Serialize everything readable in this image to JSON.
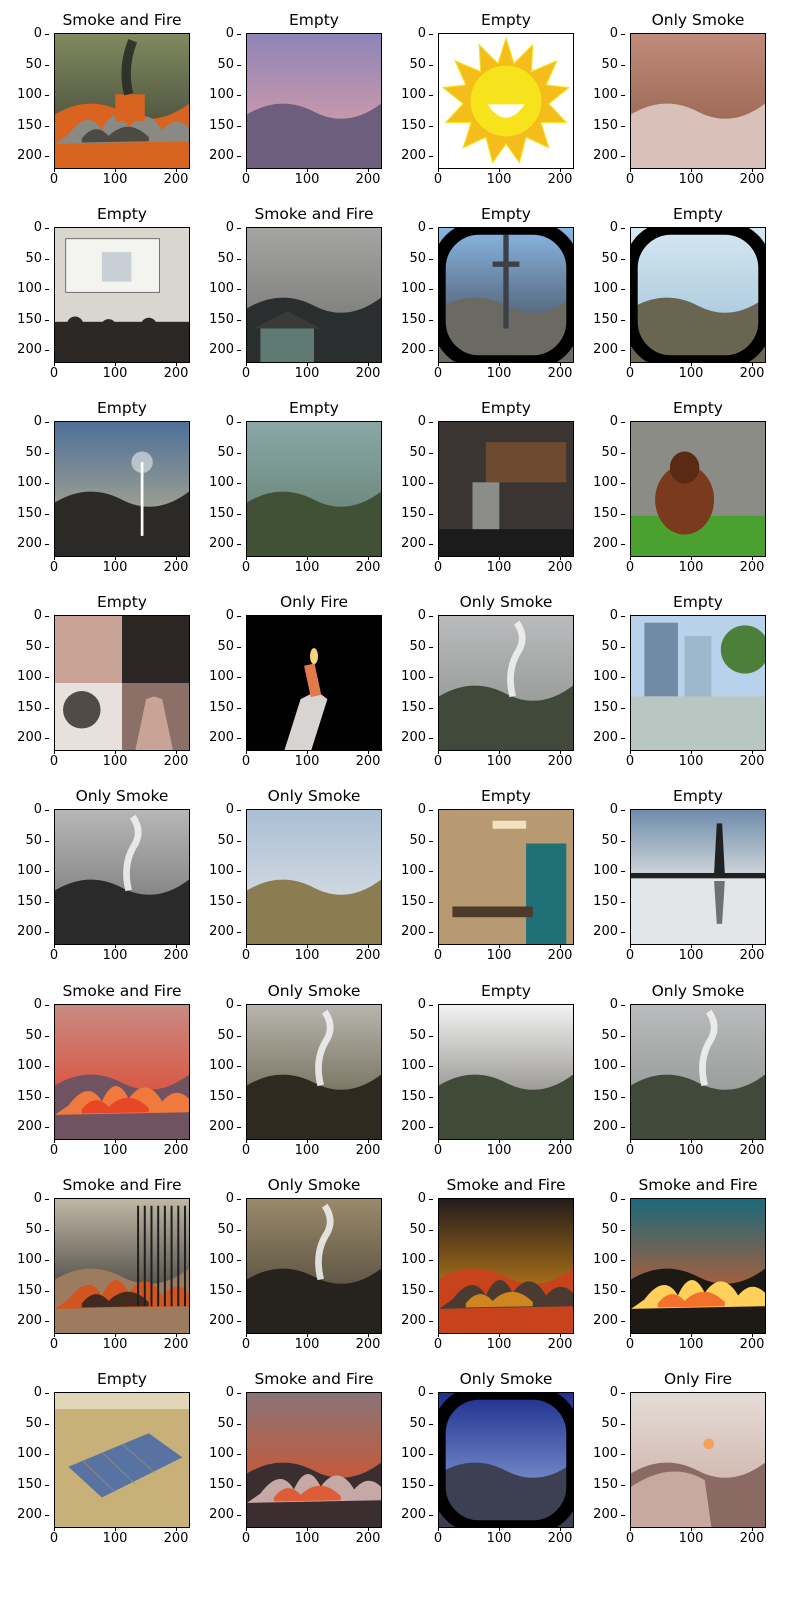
{
  "figure": {
    "x_ticks": [
      "0",
      "100",
      "200"
    ],
    "y_ticks": [
      "0",
      "50",
      "100",
      "150",
      "200"
    ],
    "panels": [
      {
        "title": "Smoke and Fire",
        "scene": "road-bus-fire",
        "colors": [
          "#7f8a5e",
          "#3b3b33",
          "#d8641f",
          "#8a8a84"
        ]
      },
      {
        "title": "Empty",
        "scene": "sunset-sky",
        "colors": [
          "#8e84b8",
          "#e8a3a4",
          "#6d5e7e",
          "#2f2f3a"
        ]
      },
      {
        "title": "Empty",
        "scene": "sun-cartoon",
        "colors": [
          "#ffffff",
          "#f4bd1b",
          "#f7e31b",
          "#6b6b6b"
        ]
      },
      {
        "title": "Only Smoke",
        "scene": "aerial-red",
        "colors": [
          "#c08b7a",
          "#8b5a46",
          "#d9c1b9",
          "#5f6b4e"
        ]
      },
      {
        "title": "Empty",
        "scene": "classroom",
        "colors": [
          "#d9d6cf",
          "#c9cfd7",
          "#2c2826",
          "#7b6a59"
        ]
      },
      {
        "title": "Smoke and Fire",
        "scene": "smoky-house",
        "colors": [
          "#a5a5a3",
          "#6e6e6b",
          "#2b2e2f",
          "#e0752e"
        ]
      },
      {
        "title": "Empty",
        "scene": "tower-fisheye",
        "colors": [
          "#8ab6e3",
          "#3b4049",
          "#6a6a63",
          "#000000"
        ]
      },
      {
        "title": "Empty",
        "scene": "fisheye-valley",
        "colors": [
          "#d5e7f1",
          "#9bbfd6",
          "#6a6550",
          "#3b3a2c"
        ]
      },
      {
        "title": "Empty",
        "scene": "tree-dusk",
        "colors": [
          "#4d6f99",
          "#c7b98c",
          "#2b2a26",
          "#ffffff"
        ]
      },
      {
        "title": "Empty",
        "scene": "hillside-green",
        "colors": [
          "#8aa7a6",
          "#5e7b6b",
          "#415135",
          "#c6cfcf"
        ]
      },
      {
        "title": "Empty",
        "scene": "dark-room",
        "colors": [
          "#3a3532",
          "#6d4a30",
          "#8c8c8a",
          "#1b1b1b"
        ]
      },
      {
        "title": "Empty",
        "scene": "orangutan",
        "colors": [
          "#8b8c85",
          "#7a3a1d",
          "#4aa12f",
          "#5a5954"
        ]
      },
      {
        "title": "Empty",
        "scene": "hair-collage",
        "colors": [
          "#e8e0dc",
          "#2b2623",
          "#c9a396",
          "#8a7066"
        ]
      },
      {
        "title": "Only Fire",
        "scene": "lighter-hand",
        "colors": [
          "#000000",
          "#d8d4d2",
          "#e27b4a",
          "#7a7a7a"
        ]
      },
      {
        "title": "Only Smoke",
        "scene": "mountain-smoke",
        "colors": [
          "#b9bbbd",
          "#8a8e88",
          "#40493a",
          "#ffffff"
        ]
      },
      {
        "title": "Empty",
        "scene": "city-street",
        "colors": [
          "#b7d2ea",
          "#6f8ba5",
          "#b8c7c2",
          "#4c7f3a"
        ]
      },
      {
        "title": "Only Smoke",
        "scene": "mountain-gray",
        "colors": [
          "#b7b7b7",
          "#6b6b6b",
          "#2a2a2a",
          "#e8e8e8"
        ]
      },
      {
        "title": "Only Smoke",
        "scene": "dry-hills",
        "colors": [
          "#a9bfd6",
          "#e6e6e6",
          "#8c7c52",
          "#5e5a3c"
        ]
      },
      {
        "title": "Empty",
        "scene": "dining-room",
        "colors": [
          "#b89a72",
          "#1f7177",
          "#4e3a2a",
          "#c7c3bb"
        ]
      },
      {
        "title": "Empty",
        "scene": "pagoda-reflection",
        "colors": [
          "#6f8cab",
          "#d1d6da",
          "#1f2224",
          "#7b7165"
        ]
      },
      {
        "title": "Smoke and Fire",
        "scene": "red-wildfire",
        "colors": [
          "#c98b83",
          "#e33b21",
          "#6f5360",
          "#f07a3e"
        ]
      },
      {
        "title": "Only Smoke",
        "scene": "steep-slope",
        "colors": [
          "#b7b5ad",
          "#5c553d",
          "#2e2a20",
          "#e6e6e6"
        ]
      },
      {
        "title": "Empty",
        "scene": "branches-cliff",
        "colors": [
          "#f2f2f2",
          "#6b6a64",
          "#3f4a37",
          "#2c2c2c"
        ]
      },
      {
        "title": "Only Smoke",
        "scene": "mountain-smoke",
        "colors": [
          "#b9bbbd",
          "#8a8e88",
          "#40493a",
          "#ffffff"
        ]
      },
      {
        "title": "Smoke and Fire",
        "scene": "gate-fire",
        "colors": [
          "#c0b7a5",
          "#1f1f1f",
          "#9c7b5e",
          "#d2551f"
        ]
      },
      {
        "title": "Only Smoke",
        "scene": "smoke-dark",
        "colors": [
          "#9a8a6b",
          "#3e3a30",
          "#26231f",
          "#e8c9c1"
        ]
      },
      {
        "title": "Smoke and Fire",
        "scene": "night-blaze",
        "colors": [
          "#231c1a",
          "#f09a1a",
          "#c8421c",
          "#4a3a32"
        ]
      },
      {
        "title": "Smoke and Fire",
        "scene": "teal-wildfire",
        "colors": [
          "#1b6a7a",
          "#f0591f",
          "#1d1a16",
          "#ffd05a"
        ]
      },
      {
        "title": "Empty",
        "scene": "solar-farm",
        "colors": [
          "#c8b079",
          "#5872a2",
          "#a59266",
          "#e1d6b8"
        ]
      },
      {
        "title": "Smoke and Fire",
        "scene": "fire-line",
        "colors": [
          "#8a7477",
          "#e54a1a",
          "#3a2e30",
          "#c6a8a6"
        ]
      },
      {
        "title": "Only Smoke",
        "scene": "blue-fisheye",
        "colors": [
          "#1e2f8f",
          "#9cb6e3",
          "#3d3f52",
          "#ffffff"
        ]
      },
      {
        "title": "Only Fire",
        "scene": "hand-match",
        "colors": [
          "#e5dcd6",
          "#c9a89f",
          "#8a6a63",
          "#f2a35a"
        ]
      }
    ]
  }
}
